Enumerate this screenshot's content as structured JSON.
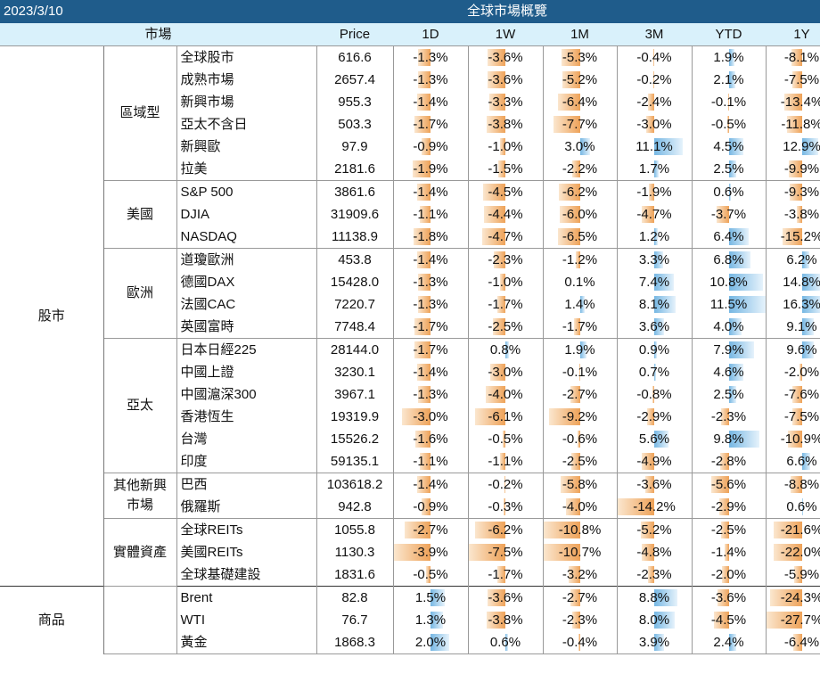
{
  "header": {
    "date": "2023/3/10",
    "title": "全球市場概覽"
  },
  "columns": {
    "market": "市場",
    "price": "Price",
    "d1": "1D",
    "w1": "1W",
    "m1": "1M",
    "m3": "3M",
    "ytd": "YTD",
    "y1": "1Y"
  },
  "bar_colors": {
    "negative": "#eea258",
    "positive": "#76b7e3"
  },
  "categories": [
    {
      "name": "股市",
      "groups": [
        {
          "name": "區域型",
          "rows": [
            {
              "name": "全球股市",
              "price": "616.6",
              "d1": "-1.3%",
              "w1": "-3.6%",
              "m1": "-5.3%",
              "m3": "-0.4%",
              "ytd": "1.9%",
              "y1": "-8.1%"
            },
            {
              "name": "成熟市場",
              "price": "2657.4",
              "d1": "-1.3%",
              "w1": "-3.6%",
              "m1": "-5.2%",
              "m3": "-0.2%",
              "ytd": "2.1%",
              "y1": "-7.5%"
            },
            {
              "name": "新興市場",
              "price": "955.3",
              "d1": "-1.4%",
              "w1": "-3.3%",
              "m1": "-6.4%",
              "m3": "-2.4%",
              "ytd": "-0.1%",
              "y1": "-13.4%"
            },
            {
              "name": "亞太不含日",
              "price": "503.3",
              "d1": "-1.7%",
              "w1": "-3.8%",
              "m1": "-7.7%",
              "m3": "-3.0%",
              "ytd": "-0.5%",
              "y1": "-11.8%"
            },
            {
              "name": "新興歐",
              "price": "97.9",
              "d1": "-0.9%",
              "w1": "-1.0%",
              "m1": "3.0%",
              "m3": "11.1%",
              "ytd": "4.5%",
              "y1": "12.9%"
            },
            {
              "name": "拉美",
              "price": "2181.6",
              "d1": "-1.9%",
              "w1": "-1.5%",
              "m1": "-2.2%",
              "m3": "1.7%",
              "ytd": "2.5%",
              "y1": "-9.9%"
            }
          ]
        },
        {
          "name": "美國",
          "rows": [
            {
              "name": "S&P 500",
              "price": "3861.6",
              "d1": "-1.4%",
              "w1": "-4.5%",
              "m1": "-6.2%",
              "m3": "-1.9%",
              "ytd": "0.6%",
              "y1": "-9.3%"
            },
            {
              "name": "DJIA",
              "price": "31909.6",
              "d1": "-1.1%",
              "w1": "-4.4%",
              "m1": "-6.0%",
              "m3": "-4.7%",
              "ytd": "-3.7%",
              "y1": "-3.8%"
            },
            {
              "name": "NASDAQ",
              "price": "11138.9",
              "d1": "-1.8%",
              "w1": "-4.7%",
              "m1": "-6.5%",
              "m3": "1.2%",
              "ytd": "6.4%",
              "y1": "-15.2%"
            }
          ]
        },
        {
          "name": "歐洲",
          "rows": [
            {
              "name": "道瓊歐洲",
              "price": "453.8",
              "d1": "-1.4%",
              "w1": "-2.3%",
              "m1": "-1.2%",
              "m3": "3.3%",
              "ytd": "6.8%",
              "y1": "6.2%"
            },
            {
              "name": "德國DAX",
              "price": "15428.0",
              "d1": "-1.3%",
              "w1": "-1.0%",
              "m1": "0.1%",
              "m3": "7.4%",
              "ytd": "10.8%",
              "y1": "14.8%"
            },
            {
              "name": "法國CAC",
              "price": "7220.7",
              "d1": "-1.3%",
              "w1": "-1.7%",
              "m1": "1.4%",
              "m3": "8.1%",
              "ytd": "11.5%",
              "y1": "16.3%"
            },
            {
              "name": "英國富時",
              "price": "7748.4",
              "d1": "-1.7%",
              "w1": "-2.5%",
              "m1": "-1.7%",
              "m3": "3.6%",
              "ytd": "4.0%",
              "y1": "9.1%"
            }
          ]
        },
        {
          "name": "亞太",
          "rows": [
            {
              "name": "日本日經225",
              "price": "28144.0",
              "d1": "-1.7%",
              "w1": "0.8%",
              "m1": "1.9%",
              "m3": "0.9%",
              "ytd": "7.9%",
              "y1": "9.6%"
            },
            {
              "name": "中國上證",
              "price": "3230.1",
              "d1": "-1.4%",
              "w1": "-3.0%",
              "m1": "-0.1%",
              "m3": "0.7%",
              "ytd": "4.6%",
              "y1": "-2.0%"
            },
            {
              "name": "中國滬深300",
              "price": "3967.1",
              "d1": "-1.3%",
              "w1": "-4.0%",
              "m1": "-2.7%",
              "m3": "-0.8%",
              "ytd": "2.5%",
              "y1": "-7.6%"
            },
            {
              "name": "香港恆生",
              "price": "19319.9",
              "d1": "-3.0%",
              "w1": "-6.1%",
              "m1": "-9.2%",
              "m3": "-2.9%",
              "ytd": "-2.3%",
              "y1": "-7.5%"
            },
            {
              "name": "台灣",
              "price": "15526.2",
              "d1": "-1.6%",
              "w1": "-0.5%",
              "m1": "-0.6%",
              "m3": "5.6%",
              "ytd": "9.8%",
              "y1": "-10.9%"
            },
            {
              "name": "印度",
              "price": "59135.1",
              "d1": "-1.1%",
              "w1": "-1.1%",
              "m1": "-2.5%",
              "m3": "-4.9%",
              "ytd": "-2.8%",
              "y1": "6.6%"
            }
          ]
        },
        {
          "name": "其他新興\n市場",
          "rows": [
            {
              "name": "巴西",
              "price": "103618.2",
              "d1": "-1.4%",
              "w1": "-0.2%",
              "m1": "-5.8%",
              "m3": "-3.6%",
              "ytd": "-5.6%",
              "y1": "-8.8%"
            },
            {
              "name": "俄羅斯",
              "price": "942.8",
              "d1": "-0.9%",
              "w1": "-0.3%",
              "m1": "-4.0%",
              "m3": "-14.2%",
              "ytd": "-2.9%",
              "y1": "0.6%"
            }
          ]
        },
        {
          "name": "實體資產",
          "rows": [
            {
              "name": "全球REITs",
              "price": "1055.8",
              "d1": "-2.7%",
              "w1": "-6.2%",
              "m1": "-10.8%",
              "m3": "-5.2%",
              "ytd": "-2.5%",
              "y1": "-21.6%"
            },
            {
              "name": "美國REITs",
              "price": "1130.3",
              "d1": "-3.9%",
              "w1": "-7.5%",
              "m1": "-10.7%",
              "m3": "-4.8%",
              "ytd": "-1.4%",
              "y1": "-22.0%"
            },
            {
              "name": "全球基礎建設",
              "price": "1831.6",
              "d1": "-0.5%",
              "w1": "-1.7%",
              "m1": "-3.2%",
              "m3": "-2.3%",
              "ytd": "-2.0%",
              "y1": "-5.9%"
            }
          ]
        }
      ]
    },
    {
      "name": "商品",
      "groups": [
        {
          "name": "",
          "rows": [
            {
              "name": "Brent",
              "price": "82.8",
              "d1": "1.5%",
              "w1": "-3.6%",
              "m1": "-2.7%",
              "m3": "8.8%",
              "ytd": "-3.6%",
              "y1": "-24.3%"
            },
            {
              "name": "WTI",
              "price": "76.7",
              "d1": "1.3%",
              "w1": "-3.8%",
              "m1": "-2.3%",
              "m3": "8.0%",
              "ytd": "-4.5%",
              "y1": "-27.7%"
            },
            {
              "name": "黃金",
              "price": "1868.3",
              "d1": "2.0%",
              "w1": "0.6%",
              "m1": "-0.4%",
              "m3": "3.9%",
              "ytd": "2.4%",
              "y1": "-6.4%"
            }
          ]
        }
      ]
    }
  ]
}
